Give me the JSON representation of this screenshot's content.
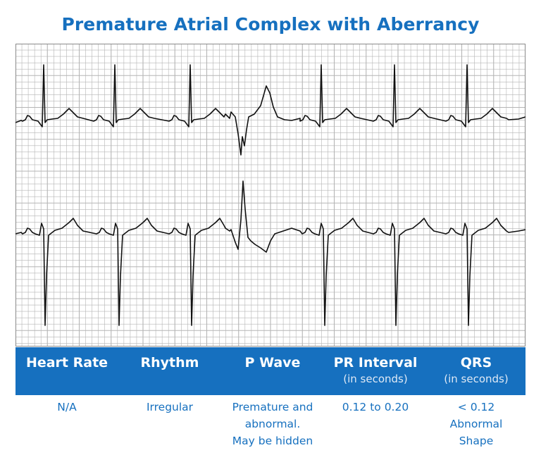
{
  "title": "Premature Atrial Complex with Aberrancy",
  "table": {
    "columns": [
      {
        "label": "Heart Rate",
        "sub": "",
        "value_lines": [
          "N/A"
        ]
      },
      {
        "label": "Rhythm",
        "sub": "",
        "value_lines": [
          "Irregular"
        ]
      },
      {
        "label": "P Wave",
        "sub": "",
        "value_lines": [
          "Premature and",
          "abnormal.",
          "May be hidden"
        ]
      },
      {
        "label": "PR Interval",
        "sub": "(in seconds)",
        "value_lines": [
          "0.12 to 0.20"
        ]
      },
      {
        "label": "QRS",
        "sub": "(in seconds)",
        "value_lines": [
          "< 0.12",
          "Abnormal",
          "Shape"
        ]
      }
    ]
  },
  "colors": {
    "accent": "#1670bf",
    "grid": "#b5b5b5",
    "trace": "#111111"
  }
}
